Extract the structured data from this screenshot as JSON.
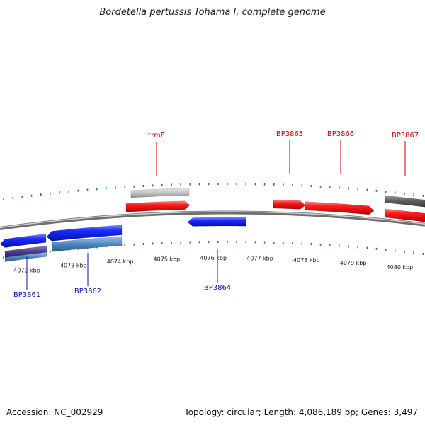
{
  "title": "Bordetella pertussis Tohama I, complete genome",
  "footer": {
    "accession": "Accession: NC_002929",
    "summary": "Topology: circular; Length: 4,086,189 bp; Genes: 3,497"
  },
  "colors": {
    "forward": "#ee1111",
    "reverse": "#1122ee",
    "tick": "#228822",
    "backbone": "#888888",
    "label_forward": "#cc0000",
    "label_reverse": "#1111bb"
  },
  "scale": {
    "ticks": [
      {
        "label": "4072 kbp",
        "kbp": 4072
      },
      {
        "label": "4073 kbp",
        "kbp": 4073
      },
      {
        "label": "4074 kbp",
        "kbp": 4074
      },
      {
        "label": "4075 kbp",
        "kbp": 4075
      },
      {
        "label": "4076 kbp",
        "kbp": 4076
      },
      {
        "label": "4077 kbp",
        "kbp": 4077
      },
      {
        "label": "4078 kbp",
        "kbp": 4078
      },
      {
        "label": "4079 kbp",
        "kbp": 4079
      },
      {
        "label": "4080 kbp",
        "kbp": 4080
      }
    ]
  },
  "genes": [
    {
      "name": "trmE",
      "strand": "forward",
      "labeled": true
    },
    {
      "name": "BP3865",
      "strand": "forward",
      "labeled": true
    },
    {
      "name": "BP3866",
      "strand": "forward",
      "labeled": true
    },
    {
      "name": "BP3867",
      "strand": "forward",
      "labeled": true
    },
    {
      "name": "BP3861",
      "strand": "reverse",
      "labeled": true
    },
    {
      "name": "BP3862",
      "strand": "reverse",
      "labeled": true
    },
    {
      "name": "BP3864",
      "strand": "reverse",
      "labeled": true
    }
  ]
}
